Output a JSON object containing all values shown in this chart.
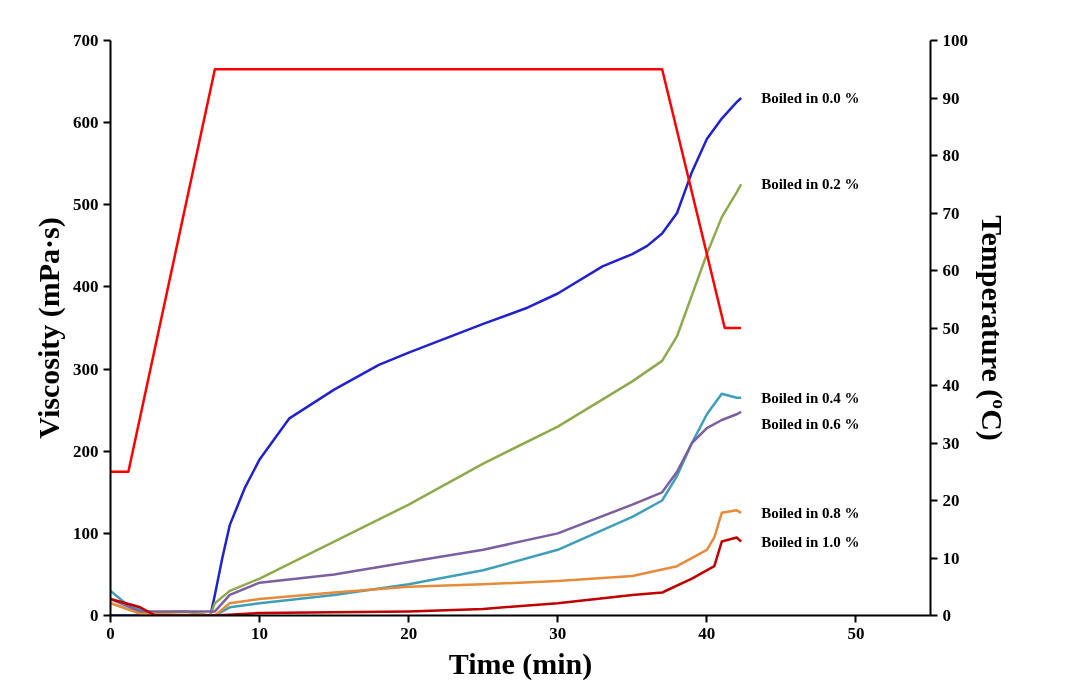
{
  "chart_data": {
    "type": "line",
    "xlabel": "Time (min)",
    "ylabel": "Viscosity (mPa·s)",
    "y2label": "Temperature (ºC)",
    "xlim": [
      0,
      55
    ],
    "xticks": [
      0,
      10,
      20,
      30,
      40,
      50
    ],
    "ylim": [
      0,
      700
    ],
    "yticks": [
      0,
      100,
      200,
      300,
      400,
      500,
      600,
      700
    ],
    "y2lim": [
      0,
      100
    ],
    "y2ticks": [
      0,
      10,
      20,
      30,
      40,
      50,
      60,
      70,
      80,
      90,
      100
    ],
    "grid": false,
    "marker": "none",
    "line_style": "solid",
    "series": [
      {
        "name": "Boiled in 0.0 %",
        "color": "#2222cc",
        "x": [
          0,
          3,
          6.7,
          7,
          7.5,
          8,
          9,
          10,
          12,
          15,
          18,
          20,
          25,
          28,
          30,
          33,
          35,
          36,
          37,
          38,
          39,
          40,
          41,
          42,
          42.3
        ],
        "values": [
          0,
          0,
          0,
          25,
          70,
          110,
          155,
          190,
          240,
          275,
          305,
          320,
          355,
          375,
          392,
          425,
          440,
          450,
          465,
          490,
          540,
          580,
          605,
          625,
          630
        ]
      },
      {
        "name": "Boiled in 0.2 %",
        "color": "#8faa4e",
        "x": [
          0,
          2,
          5,
          6.7,
          7,
          8,
          10,
          15,
          20,
          25,
          30,
          35,
          37,
          38,
          39,
          40,
          41,
          42,
          42.3
        ],
        "values": [
          15,
          3,
          5,
          0,
          15,
          30,
          45,
          90,
          135,
          185,
          230,
          285,
          310,
          340,
          390,
          440,
          485,
          515,
          525
        ]
      },
      {
        "name": "Boiled in 0.4 %",
        "color": "#3e9fb8",
        "x": [
          0,
          1,
          3,
          7,
          8,
          10,
          15,
          20,
          25,
          30,
          35,
          37,
          38,
          39,
          40,
          41,
          42,
          42.3
        ],
        "values": [
          30,
          15,
          0,
          0,
          10,
          15,
          25,
          38,
          55,
          80,
          120,
          140,
          170,
          210,
          245,
          270,
          265,
          265
        ]
      },
      {
        "name": "Boiled in 0.6 %",
        "color": "#7b5fa0",
        "x": [
          0,
          2,
          7,
          8,
          10,
          15,
          20,
          25,
          30,
          35,
          37,
          38,
          39,
          40,
          41,
          42,
          42.3
        ],
        "values": [
          20,
          5,
          5,
          25,
          40,
          50,
          65,
          80,
          100,
          135,
          150,
          175,
          210,
          228,
          238,
          245,
          248
        ]
      },
      {
        "name": "Boiled in 0.8 %",
        "color": "#e68a3c",
        "x": [
          0,
          2,
          7,
          8,
          10,
          15,
          20,
          25,
          30,
          35,
          38,
          40,
          40.5,
          41,
          42,
          42.3
        ],
        "values": [
          15,
          2,
          0,
          15,
          20,
          28,
          35,
          38,
          42,
          48,
          60,
          80,
          95,
          125,
          128,
          125
        ]
      },
      {
        "name": "Boiled in 1.0 %",
        "color": "#c00000",
        "x": [
          0,
          2,
          3,
          7,
          10,
          20,
          25,
          30,
          35,
          37,
          39,
          40.5,
          41,
          42,
          42.3
        ],
        "values": [
          20,
          10,
          0,
          0,
          3,
          5,
          8,
          15,
          25,
          28,
          45,
          60,
          90,
          95,
          90
        ]
      },
      {
        "color": "#ff0000",
        "axis": "y2",
        "x": [
          0,
          1.2,
          7,
          37,
          41.2,
          42.3
        ],
        "values": [
          25,
          25,
          95,
          95,
          50,
          50
        ]
      }
    ]
  }
}
